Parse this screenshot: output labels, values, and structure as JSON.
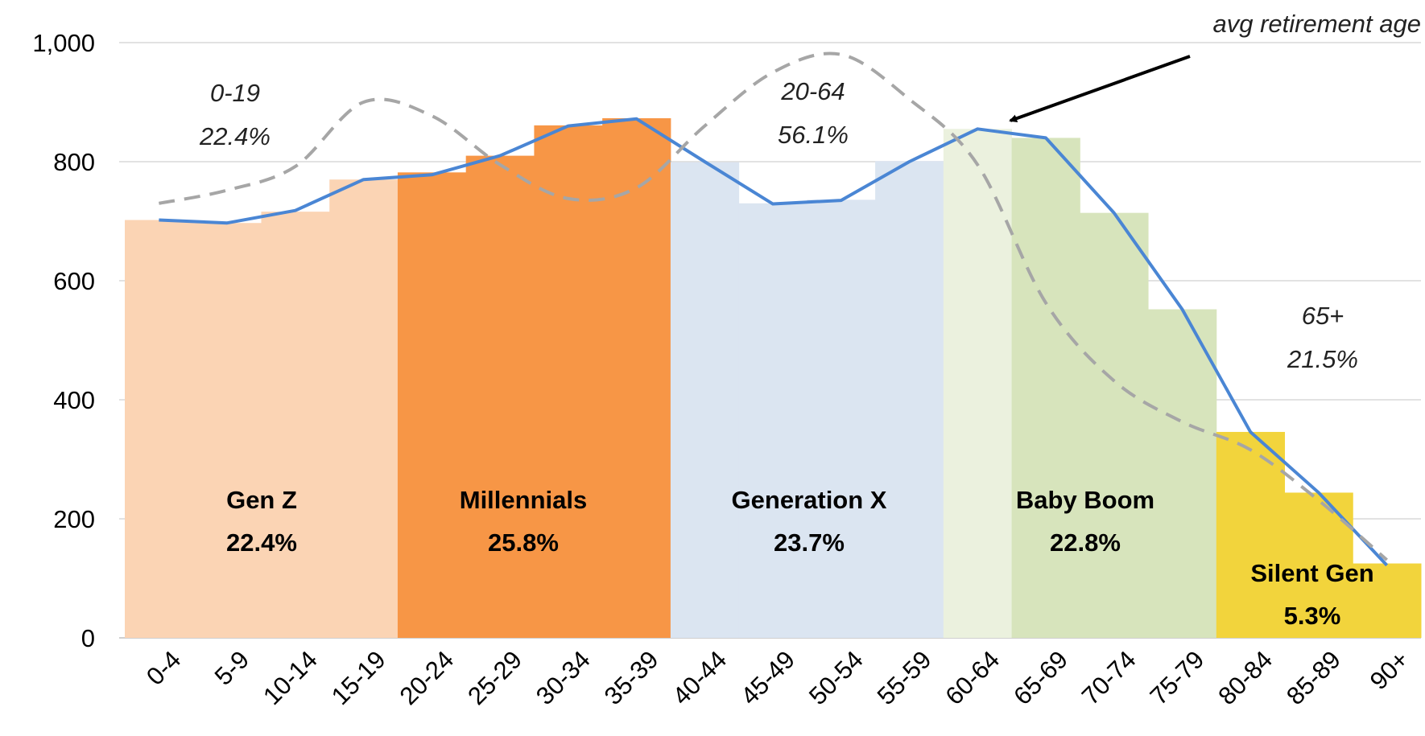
{
  "chart_data": {
    "type": "bar",
    "categories": [
      "0-4",
      "5-9",
      "10-14",
      "15-19",
      "20-24",
      "25-29",
      "30-34",
      "35-39",
      "40-44",
      "45-49",
      "50-54",
      "55-59",
      "60-64",
      "65-69",
      "70-74",
      "75-79",
      "80-84",
      "85-89",
      "90+"
    ],
    "values": [
      702,
      697,
      716,
      770,
      782,
      810,
      861,
      873,
      799,
      730,
      736,
      801,
      855,
      840,
      714,
      552,
      346,
      244,
      125
    ],
    "colors": [
      "#fbd4b4",
      "#fbd4b4",
      "#fbd4b4",
      "#fbd4b4",
      "#f79646",
      "#f79646",
      "#f79646",
      "#f79646",
      "#dbe5f1",
      "#dbe5f1",
      "#dbe5f1",
      "#dbe5f1",
      "#ebf1de",
      "#d7e4bc",
      "#d7e4bc",
      "#d7e4bc",
      "#f2d43c",
      "#f2d43c",
      "#f2d43c"
    ],
    "series": [
      {
        "color": "#4a86d4",
        "values": [
          702,
          697,
          718,
          770,
          778,
          810,
          860,
          872,
          800,
          729,
          735,
          800,
          855,
          840,
          714,
          552,
          346,
          244,
          122
        ]
      },
      {
        "color": "#a6a6a6",
        "dashed": true,
        "values": [
          730,
          752,
          792,
          900,
          877,
          795,
          738,
          756,
          860,
          950,
          980,
          905,
          795,
          563,
          432,
          363,
          316,
          231,
          131
        ]
      }
    ],
    "ylim": [
      0,
      1000
    ],
    "yticks": [
      0,
      200,
      400,
      600,
      800,
      {
        "value": 1000,
        "label": "1,000"
      }
    ],
    "grid": true,
    "groups": [
      {
        "name": "Gen Z",
        "share": "22.4%"
      },
      {
        "name": "Millennials",
        "share": "25.8%"
      },
      {
        "name": "Generation X",
        "share": "23.7%"
      },
      {
        "name": "Baby Boom",
        "share": "22.8%"
      },
      {
        "name": "Silent Gen",
        "share": "5.3%"
      }
    ],
    "ranges": [
      {
        "range": "0-19",
        "share": "22.4%"
      },
      {
        "range": "20-64",
        "share": "56.1%"
      },
      {
        "range": "65+",
        "share": "21.5%"
      }
    ],
    "annotation": "avg retirement age"
  }
}
